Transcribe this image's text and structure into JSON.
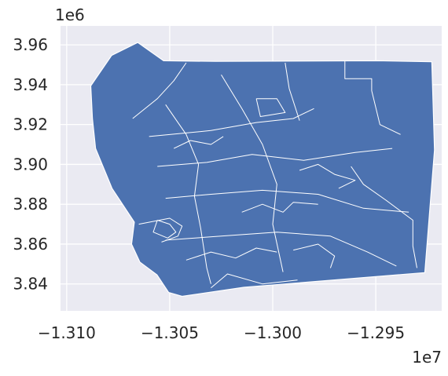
{
  "chart_data": {
    "type": "choropleth-map",
    "xlim": [
      -1.3103,
      -1.2918
    ],
    "ylim": [
      3.8265,
      3.9695
    ],
    "x_ticks": [
      {
        "value": -1.31,
        "label": "−1.310"
      },
      {
        "value": -1.305,
        "label": "−1.305"
      },
      {
        "value": -1.3,
        "label": "−1.300"
      },
      {
        "value": -1.295,
        "label": "−1.295"
      }
    ],
    "y_ticks": [
      {
        "value": 3.84,
        "label": "3.84"
      },
      {
        "value": 3.86,
        "label": "3.86"
      },
      {
        "value": 3.88,
        "label": "3.88"
      },
      {
        "value": 3.9,
        "label": "3.90"
      },
      {
        "value": 3.92,
        "label": "3.92"
      },
      {
        "value": 3.94,
        "label": "3.94"
      },
      {
        "value": 3.96,
        "label": "3.96"
      }
    ],
    "x_multiplier": "1e7",
    "y_multiplier": "1e6",
    "grid": true,
    "colors": {
      "fill": "#4c72b0",
      "edge": "#ffffff",
      "axes_bg": "#eaeaf2",
      "grid": "#ffffff",
      "text": "#262626"
    },
    "outline": [
      [
        -1.30883,
        3.9394
      ],
      [
        -1.30782,
        3.9547
      ],
      [
        -1.30655,
        3.9612
      ],
      [
        -1.3053,
        3.952
      ],
      [
        -1.30278,
        3.9517
      ],
      [
        -1.2949,
        3.952
      ],
      [
        -1.29228,
        3.9515
      ],
      [
        -1.29215,
        3.9072
      ],
      [
        -1.29262,
        3.8457
      ],
      [
        -1.3014,
        3.8383
      ],
      [
        -1.3044,
        3.8338
      ],
      [
        -1.30505,
        3.8357
      ],
      [
        -1.30562,
        3.8446
      ],
      [
        -1.30645,
        3.851
      ],
      [
        -1.30685,
        3.86
      ],
      [
        -1.30672,
        3.871
      ],
      [
        -1.3078,
        3.888
      ],
      [
        -1.3086,
        3.908
      ],
      [
        -1.30875,
        3.923
      ]
    ],
    "boundaries": [
      [
        [
          -1.3068,
          3.923
        ],
        [
          -1.3056,
          3.933
        ],
        [
          -1.3048,
          3.942
        ],
        [
          -1.3042,
          3.951
        ]
      ],
      [
        [
          -1.306,
          3.914
        ],
        [
          -1.303,
          3.917
        ],
        [
          -1.3008,
          3.921
        ],
        [
          -1.299,
          3.923
        ],
        [
          -1.298,
          3.928
        ]
      ],
      [
        [
          -1.3056,
          3.899
        ],
        [
          -1.3032,
          3.901
        ],
        [
          -1.301,
          3.905
        ],
        [
          -1.2985,
          3.902
        ],
        [
          -1.296,
          3.906
        ],
        [
          -1.2942,
          3.908
        ]
      ],
      [
        [
          -1.3052,
          3.883
        ],
        [
          -1.303,
          3.885
        ],
        [
          -1.3005,
          3.887
        ],
        [
          -1.2978,
          3.885
        ],
        [
          -1.2956,
          3.878
        ],
        [
          -1.2934,
          3.876
        ]
      ],
      [
        [
          -1.3052,
          3.862
        ],
        [
          -1.3025,
          3.864
        ],
        [
          -1.2998,
          3.866
        ],
        [
          -1.2972,
          3.864
        ],
        [
          -1.2954,
          3.856
        ],
        [
          -1.294,
          3.849
        ]
      ],
      [
        [
          -1.3052,
          3.93
        ],
        [
          -1.3042,
          3.915
        ],
        [
          -1.3036,
          3.9
        ],
        [
          -1.3038,
          3.884
        ],
        [
          -1.3035,
          3.868
        ],
        [
          -1.3032,
          3.848
        ],
        [
          -1.303,
          3.84
        ]
      ],
      [
        [
          -1.3025,
          3.945
        ],
        [
          -1.3015,
          3.928
        ],
        [
          -1.3005,
          3.91
        ],
        [
          -1.2998,
          3.89
        ],
        [
          -1.3,
          3.87
        ],
        [
          -1.2995,
          3.846
        ]
      ],
      [
        [
          -1.2994,
          3.951
        ],
        [
          -1.2992,
          3.938
        ],
        [
          -1.2987,
          3.922
        ]
      ],
      [
        [
          -1.2965,
          3.952
        ],
        [
          -1.2965,
          3.943
        ],
        [
          -1.2952,
          3.943
        ],
        [
          -1.2952,
          3.937
        ],
        [
          -1.2948,
          3.92
        ],
        [
          -1.2938,
          3.915
        ]
      ],
      [
        [
          -1.2962,
          3.899
        ],
        [
          -1.2956,
          3.89
        ],
        [
          -1.2945,
          3.882
        ],
        [
          -1.2932,
          3.872
        ],
        [
          -1.2932,
          3.859
        ],
        [
          -1.293,
          3.848
        ]
      ],
      [
        [
          -1.3065,
          3.87
        ],
        [
          -1.305,
          3.873
        ],
        [
          -1.3044,
          3.869
        ],
        [
          -1.3046,
          3.864
        ],
        [
          -1.3054,
          3.861
        ]
      ],
      [
        [
          -1.3056,
          3.872
        ],
        [
          -1.305,
          3.87
        ],
        [
          -1.3047,
          3.866
        ],
        [
          -1.3051,
          3.863
        ],
        [
          -1.3058,
          3.866
        ],
        [
          -1.3056,
          3.872
        ]
      ],
      [
        [
          -1.303,
          3.838
        ],
        [
          -1.3022,
          3.845
        ],
        [
          -1.3005,
          3.84
        ],
        [
          -1.2988,
          3.842
        ]
      ],
      [
        [
          -1.3042,
          3.852
        ],
        [
          -1.303,
          3.856
        ],
        [
          -1.3018,
          3.853
        ],
        [
          -1.3008,
          3.858
        ],
        [
          -1.2998,
          3.856
        ]
      ],
      [
        [
          -1.3048,
          3.908
        ],
        [
          -1.304,
          3.912
        ],
        [
          -1.303,
          3.91
        ],
        [
          -1.3024,
          3.914
        ]
      ],
      [
        [
          -1.3008,
          3.933
        ],
        [
          -1.2998,
          3.933
        ],
        [
          -1.2994,
          3.926
        ],
        [
          -1.3006,
          3.924
        ],
        [
          -1.3008,
          3.933
        ]
      ],
      [
        [
          -1.2987,
          3.897
        ],
        [
          -1.2978,
          3.9
        ],
        [
          -1.297,
          3.895
        ],
        [
          -1.296,
          3.892
        ],
        [
          -1.2968,
          3.888
        ]
      ],
      [
        [
          -1.299,
          3.857
        ],
        [
          -1.2978,
          3.86
        ],
        [
          -1.297,
          3.854
        ],
        [
          -1.2972,
          3.848
        ]
      ],
      [
        [
          -1.3015,
          3.876
        ],
        [
          -1.3005,
          3.88
        ],
        [
          -1.2995,
          3.876
        ],
        [
          -1.299,
          3.881
        ],
        [
          -1.2978,
          3.88
        ]
      ]
    ]
  }
}
